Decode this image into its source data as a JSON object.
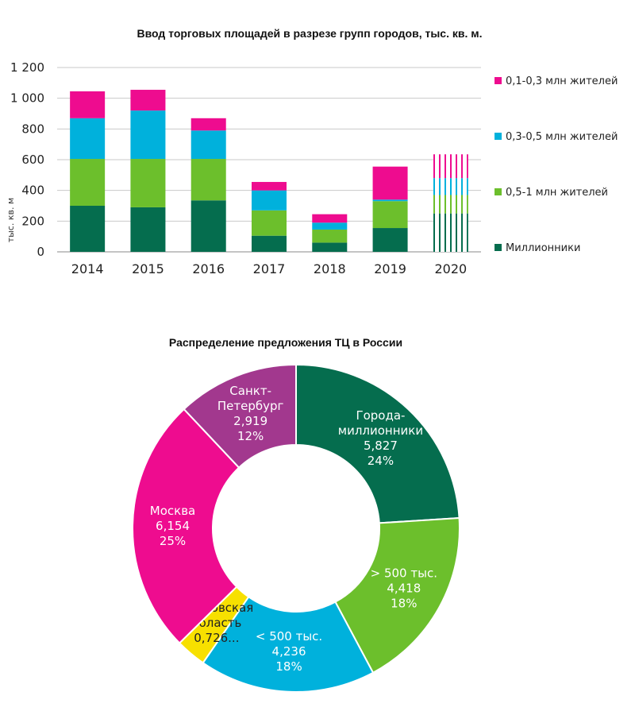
{
  "chart_data": [
    {
      "type": "bar",
      "stacked": true,
      "title": "Ввод торговых площадей в разрезе групп городов, тыс. кв. м.",
      "ylabel": "тыс. кв. м",
      "xlabel": "",
      "ylim": [
        0,
        1200
      ],
      "yticks": [
        0,
        200,
        400,
        600,
        800,
        1000,
        1200
      ],
      "ytick_labels": [
        "0",
        "200",
        "400",
        "600",
        "800",
        "1 000",
        "1 200"
      ],
      "categories": [
        "2014",
        "2015",
        "2016",
        "2017",
        "2018",
        "2019",
        "2020"
      ],
      "forecast_categories": [
        "2020"
      ],
      "grid": true,
      "legend_position": "right",
      "series": [
        {
          "name": "Миллионники",
          "color": "#056d4e",
          "values": [
            300,
            290,
            335,
            105,
            60,
            155,
            250
          ]
        },
        {
          "name": "0,5-1 млн жителей",
          "color": "#6cbf2c",
          "values": [
            305,
            315,
            270,
            165,
            85,
            175,
            120
          ]
        },
        {
          "name": "0,3-0,5 млн жителей",
          "color": "#00b1dc",
          "values": [
            265,
            315,
            185,
            130,
            45,
            10,
            110
          ]
        },
        {
          "name": "0,1-0,3 млн жителей",
          "color": "#ee0c8f",
          "values": [
            175,
            135,
            80,
            55,
            55,
            215,
            155
          ]
        }
      ]
    },
    {
      "type": "pie",
      "donut": true,
      "title": "Распределение предложения ТЦ в России",
      "slices": [
        {
          "label_lines": [
            "Города-",
            "миллионники"
          ],
          "value": 5827,
          "value_text": "5,827",
          "percent_text": "24%",
          "color": "#056d4e",
          "text_color": "#ffffff"
        },
        {
          "label_lines": [
            "> 500 тыс."
          ],
          "value": 4418,
          "value_text": "4,418",
          "percent_text": "18%",
          "color": "#6cbf2c",
          "text_color": "#ffffff"
        },
        {
          "label_lines": [
            "< 500 тыс."
          ],
          "value": 4236,
          "value_text": "4,236",
          "percent_text": "18%",
          "color": "#00b1dc",
          "text_color": "#ffffff"
        },
        {
          "label_lines": [
            "Московская",
            "область"
          ],
          "value": 726,
          "value_text": "0,726...",
          "percent_text": "",
          "color": "#f7e000",
          "text_color": "#222222"
        },
        {
          "label_lines": [
            "Москва"
          ],
          "value": 6154,
          "value_text": "6,154",
          "percent_text": "25%",
          "color": "#ee0c8f",
          "text_color": "#ffffff"
        },
        {
          "label_lines": [
            "Санкт-",
            "Петербург"
          ],
          "value": 2919,
          "value_text": "2,919",
          "percent_text": "12%",
          "color": "#a2388e",
          "text_color": "#ffffff"
        }
      ]
    }
  ]
}
